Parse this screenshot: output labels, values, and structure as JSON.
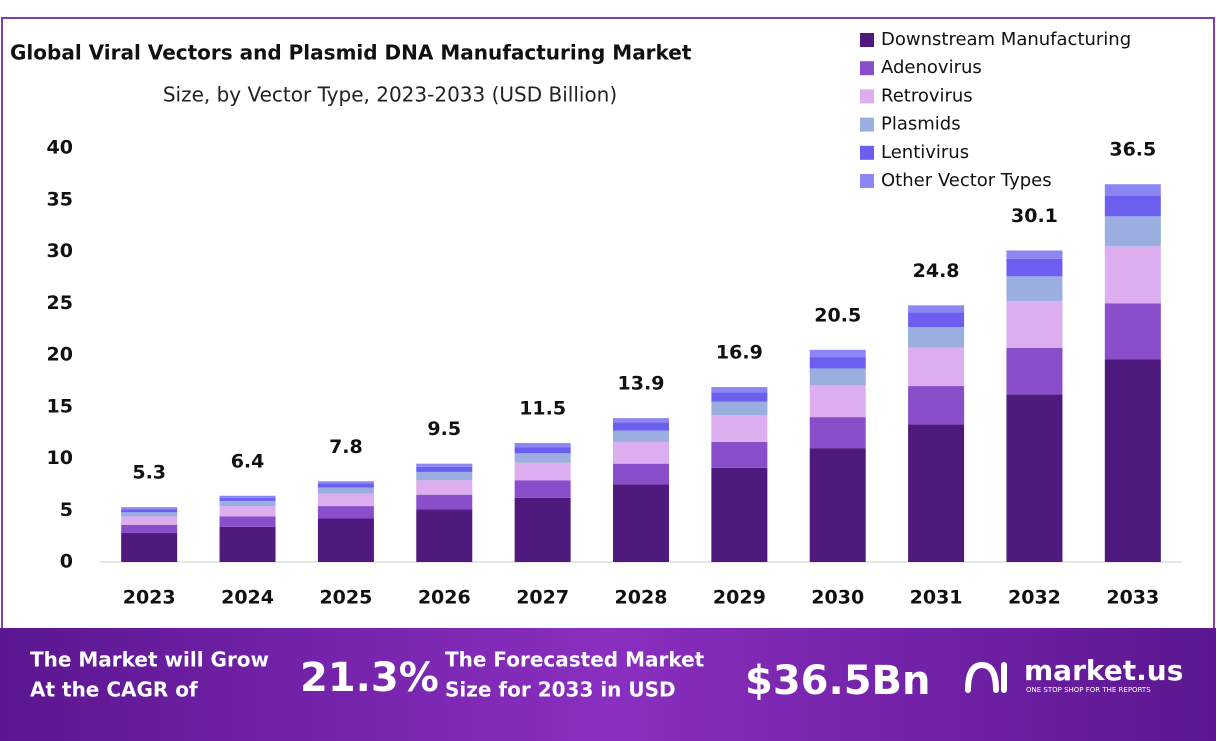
{
  "chart_data": {
    "type": "stacked_bar",
    "title": "Global Viral Vectors and Plasmid DNA Manufacturing Market",
    "subtitle": "Size, by Vector Type, 2023-2033 (USD Billion)",
    "categories": [
      "2023",
      "2024",
      "2025",
      "2026",
      "2027",
      "2028",
      "2029",
      "2030",
      "2031",
      "2032",
      "2033"
    ],
    "series": [
      {
        "name": "Downstream Manufacturing",
        "color": "#4e1a7e",
        "values": [
          2.8,
          3.4,
          4.2,
          5.1,
          6.2,
          7.5,
          9.1,
          11.0,
          13.3,
          16.2,
          19.6
        ]
      },
      {
        "name": "Adenovirus",
        "color": "#8a4ecb",
        "values": [
          0.8,
          1.0,
          1.2,
          1.4,
          1.7,
          2.0,
          2.5,
          3.0,
          3.7,
          4.5,
          5.4
        ]
      },
      {
        "name": "Retrovirus",
        "color": "#dcaeef",
        "values": [
          0.8,
          1.0,
          1.2,
          1.4,
          1.7,
          2.1,
          2.6,
          3.1,
          3.7,
          4.5,
          5.5
        ]
      },
      {
        "name": "Plasmids",
        "color": "#9aaee0",
        "values": [
          0.4,
          0.5,
          0.6,
          0.8,
          0.9,
          1.1,
          1.3,
          1.6,
          2.0,
          2.4,
          2.9
        ]
      },
      {
        "name": "Lentivirus",
        "color": "#6c5ff0",
        "values": [
          0.3,
          0.3,
          0.4,
          0.5,
          0.6,
          0.8,
          0.9,
          1.1,
          1.4,
          1.7,
          2.0
        ]
      },
      {
        "name": "Other Vector Types",
        "color": "#8c86f5",
        "values": [
          0.2,
          0.2,
          0.2,
          0.3,
          0.4,
          0.4,
          0.5,
          0.7,
          0.7,
          0.8,
          1.1
        ]
      }
    ],
    "totals": [
      5.3,
      6.4,
      7.8,
      9.5,
      11.5,
      13.9,
      16.9,
      20.5,
      24.8,
      30.1,
      36.5
    ],
    "ylim": [
      0,
      40
    ],
    "yticks": [
      0,
      5,
      10,
      15,
      20,
      25,
      30,
      35,
      40
    ],
    "grid": false,
    "legend": "top-right"
  },
  "footer": {
    "cagr_text": [
      "The Market will Grow",
      "At the CAGR of"
    ],
    "cagr": "21.3%",
    "forecast_text": [
      "The Forecasted Market",
      "Size for 2033 in USD"
    ],
    "forecast": "$36.5Bn",
    "brand": "market.us",
    "tagline": "ONE STOP SHOP FOR THE REPORTS"
  }
}
